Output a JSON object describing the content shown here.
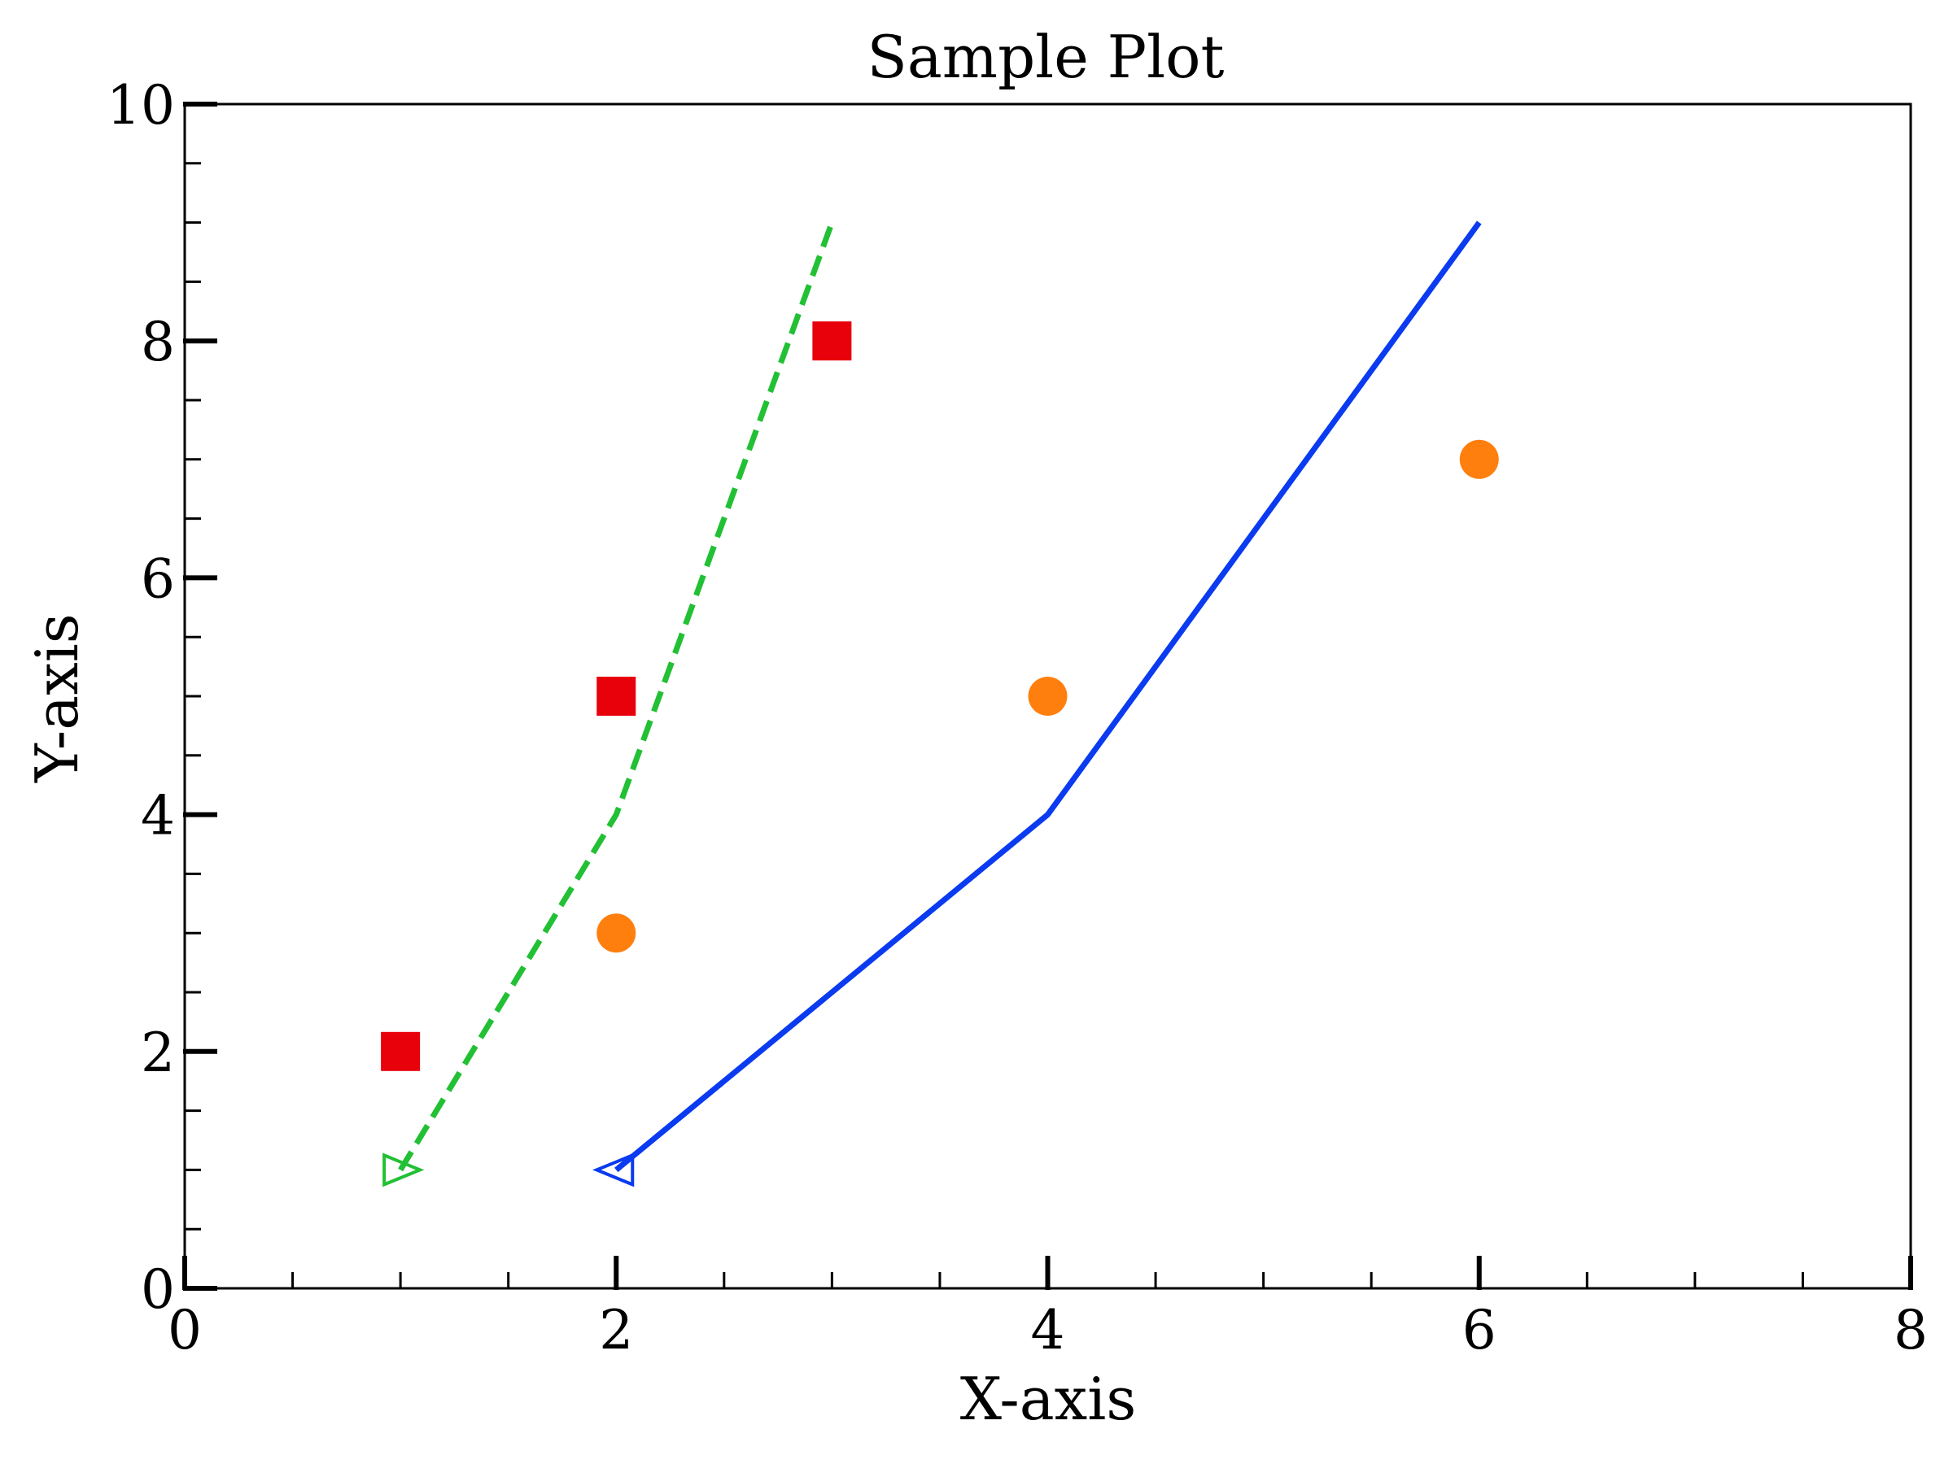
{
  "chart_data": {
    "type": "line",
    "title": "Sample Plot",
    "xlabel": "X-axis",
    "ylabel": "Y-axis",
    "xlim": [
      0,
      8
    ],
    "ylim": [
      0,
      10
    ],
    "xticks": [
      0,
      2,
      4,
      6,
      8
    ],
    "yticks": [
      0,
      2,
      4,
      6,
      8,
      10
    ],
    "xtick_labels": [
      "0",
      "2",
      "4",
      "6",
      "8"
    ],
    "ytick_labels": [
      "0",
      "2",
      "4",
      "6",
      "8",
      "10"
    ],
    "x_minor_step": 0.5,
    "y_minor_step": 0.5,
    "grid": false,
    "legend": "none",
    "series": [
      {
        "kind": "line",
        "style": "dashed",
        "color": "#22c034",
        "x": [
          1,
          2,
          3
        ],
        "y": [
          1,
          4,
          9
        ]
      },
      {
        "kind": "line",
        "style": "solid",
        "color": "#0a3bf0",
        "x": [
          2,
          4,
          6
        ],
        "y": [
          1,
          4,
          9
        ]
      },
      {
        "kind": "scatter",
        "marker": "square",
        "color": "#e8000b",
        "x": [
          1,
          2,
          3
        ],
        "y": [
          2,
          5,
          8
        ]
      },
      {
        "kind": "scatter",
        "marker": "circle",
        "color": "#ff7f0e",
        "x": [
          2,
          4,
          6
        ],
        "y": [
          3,
          5,
          7
        ]
      },
      {
        "kind": "scatter",
        "marker": "triangle-right-open",
        "color": "#22c034",
        "x": [
          1
        ],
        "y": [
          1
        ]
      },
      {
        "kind": "scatter",
        "marker": "triangle-left-open",
        "color": "#0a3bf0",
        "x": [
          2
        ],
        "y": [
          1
        ]
      }
    ]
  }
}
